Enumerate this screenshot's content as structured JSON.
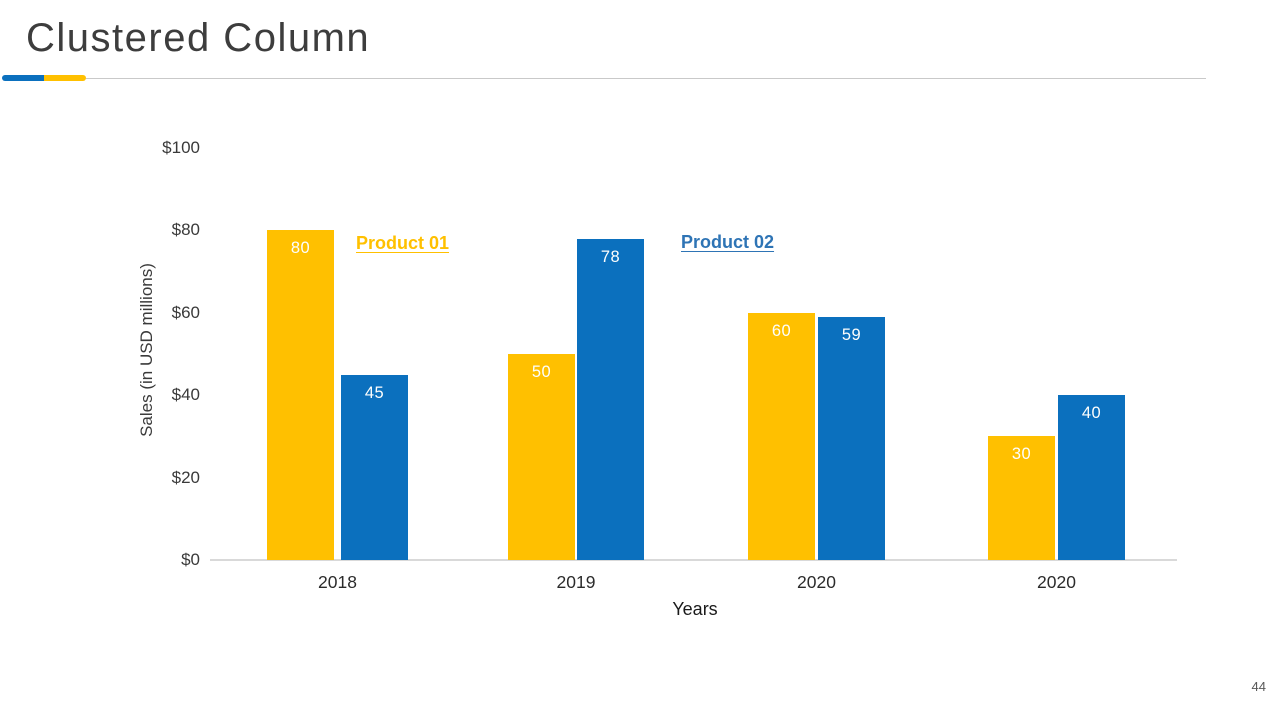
{
  "slide": {
    "title": "Clustered Column",
    "page_number": "44"
  },
  "header": {
    "accent_blue": "#0b70be",
    "accent_yellow": "#ffc000",
    "rule_color": "#c9c9c9"
  },
  "chart_data": {
    "type": "bar",
    "title": "",
    "categories": [
      "2018",
      "2019",
      "2020",
      "2020"
    ],
    "series": [
      {
        "name": "Product 01",
        "color": "#ffc000",
        "values": [
          80,
          50,
          60,
          30
        ]
      },
      {
        "name": "Product 02",
        "color": "#0b70be",
        "values": [
          45,
          78,
          59,
          40
        ]
      }
    ],
    "xlabel": "Years",
    "ylabel": "Sales (in USD millions)",
    "ylim": [
      0,
      100
    ],
    "yticks": [
      {
        "label": "$0",
        "value": 0
      },
      {
        "label": "$20",
        "value": 20
      },
      {
        "label": "$40",
        "value": 40
      },
      {
        "label": "$60",
        "value": 60
      },
      {
        "label": "$80",
        "value": 80
      },
      {
        "label": "$100",
        "value": 100
      }
    ],
    "grid": false,
    "legend_position": "inside-plot-top",
    "legend_text_colors": [
      "#ffc000",
      "#2e74b5"
    ],
    "value_label_color": "#fdfefd",
    "value_labels_position": "inside-top"
  }
}
